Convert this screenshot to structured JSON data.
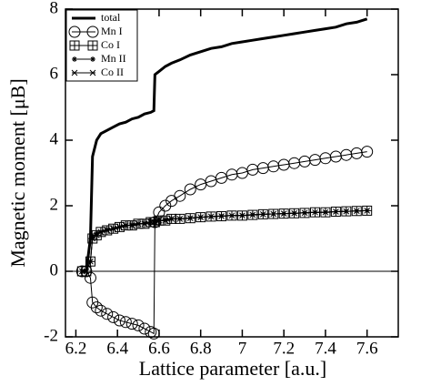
{
  "chart_data": {
    "type": "line",
    "xlabel": "Lattice parameter [a.u.]",
    "ylabel": "Magnetic moment [μB]",
    "xlim": [
      6.15,
      7.75
    ],
    "ylim": [
      -2,
      8
    ],
    "xticks": [
      6.2,
      6.4,
      6.6,
      6.8,
      7,
      7.2,
      7.4,
      7.6
    ],
    "yticks": [
      -2,
      0,
      2,
      4,
      6,
      8
    ],
    "hline": 0,
    "legend": "upper left",
    "x": [
      6.23,
      6.25,
      6.27,
      6.28,
      6.3,
      6.32,
      6.35,
      6.38,
      6.41,
      6.44,
      6.47,
      6.5,
      6.53,
      6.56,
      6.575,
      6.58,
      6.6,
      6.63,
      6.66,
      6.7,
      6.75,
      6.8,
      6.85,
      6.9,
      6.95,
      7.0,
      7.05,
      7.1,
      7.15,
      7.2,
      7.25,
      7.3,
      7.35,
      7.4,
      7.45,
      7.5,
      7.55,
      7.6
    ],
    "series": [
      {
        "name": "total",
        "color": "#000000",
        "marker": "none",
        "values": [
          0,
          0,
          1.0,
          3.5,
          4.0,
          4.2,
          4.3,
          4.4,
          4.5,
          4.55,
          4.65,
          4.7,
          4.8,
          4.85,
          4.9,
          6.0,
          6.1,
          6.25,
          6.35,
          6.45,
          6.6,
          6.7,
          6.8,
          6.85,
          6.95,
          7.0,
          7.05,
          7.1,
          7.15,
          7.2,
          7.25,
          7.3,
          7.35,
          7.4,
          7.45,
          7.55,
          7.6,
          7.7
        ]
      },
      {
        "name": "Mn I",
        "color": "#000000",
        "marker": "circle",
        "values": [
          0,
          0,
          -0.2,
          -0.95,
          -1.1,
          -1.2,
          -1.3,
          -1.4,
          -1.5,
          -1.55,
          -1.6,
          -1.65,
          -1.75,
          -1.85,
          -1.9,
          1.5,
          1.8,
          2.0,
          2.15,
          2.3,
          2.5,
          2.65,
          2.75,
          2.85,
          2.95,
          3.0,
          3.1,
          3.15,
          3.2,
          3.25,
          3.3,
          3.35,
          3.4,
          3.45,
          3.5,
          3.55,
          3.6,
          3.65
        ]
      },
      {
        "name": "Co I",
        "color": "#000000",
        "marker": "square-plus",
        "values": [
          0,
          0,
          0.3,
          1.0,
          1.1,
          1.2,
          1.25,
          1.3,
          1.35,
          1.4,
          1.4,
          1.45,
          1.45,
          1.5,
          1.5,
          1.5,
          1.55,
          1.55,
          1.6,
          1.6,
          1.62,
          1.65,
          1.67,
          1.68,
          1.7,
          1.7,
          1.72,
          1.74,
          1.75,
          1.76,
          1.77,
          1.78,
          1.8,
          1.8,
          1.82,
          1.83,
          1.84,
          1.85
        ]
      },
      {
        "name": "Mn II",
        "color": "#000000",
        "marker": "star",
        "values": [
          0,
          0,
          0.3,
          1.05,
          1.15,
          1.2,
          1.27,
          1.3,
          1.35,
          1.4,
          1.42,
          1.45,
          1.47,
          1.5,
          1.5,
          1.5,
          1.55,
          1.57,
          1.6,
          1.6,
          1.63,
          1.65,
          1.67,
          1.69,
          1.7,
          1.71,
          1.73,
          1.74,
          1.75,
          1.76,
          1.77,
          1.79,
          1.8,
          1.81,
          1.82,
          1.83,
          1.84,
          1.85
        ]
      },
      {
        "name": "Co II",
        "color": "#000000",
        "marker": "x",
        "values": [
          0,
          0,
          0.3,
          1.0,
          1.1,
          1.2,
          1.25,
          1.3,
          1.35,
          1.4,
          1.4,
          1.45,
          1.45,
          1.5,
          1.5,
          1.5,
          1.55,
          1.55,
          1.6,
          1.6,
          1.62,
          1.65,
          1.67,
          1.68,
          1.7,
          1.7,
          1.72,
          1.74,
          1.75,
          1.76,
          1.77,
          1.78,
          1.8,
          1.8,
          1.82,
          1.83,
          1.84,
          1.85
        ]
      }
    ]
  }
}
